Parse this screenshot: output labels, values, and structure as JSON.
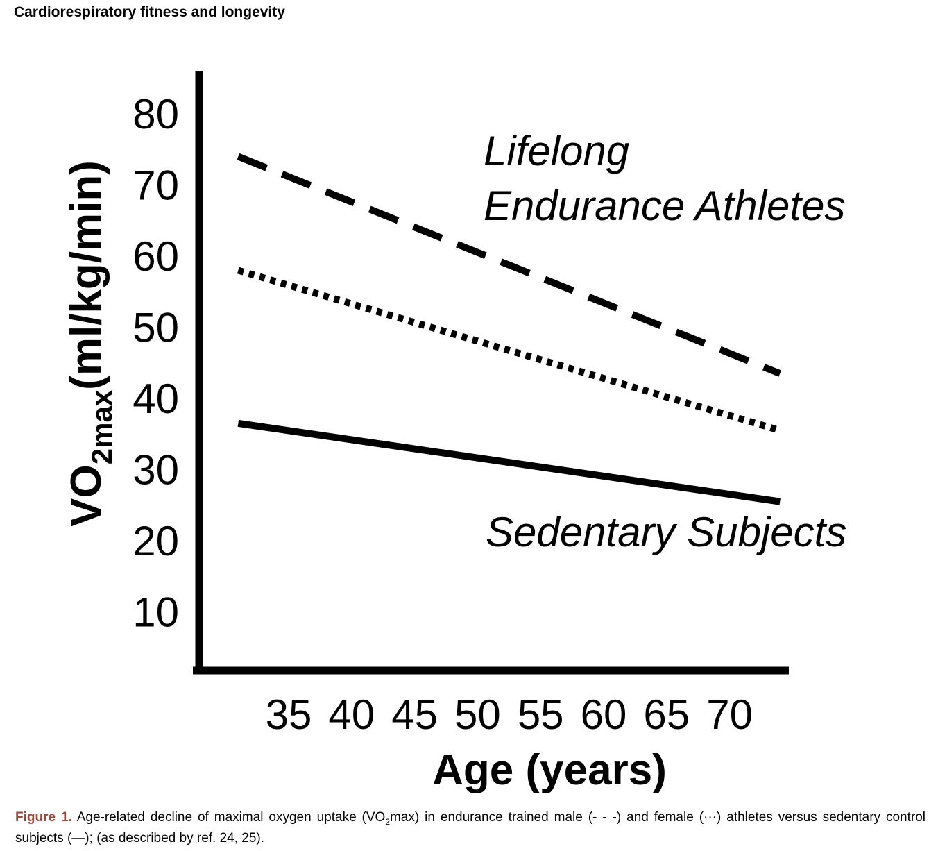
{
  "header": {
    "title": "Cardiorespiratory fitness and longevity"
  },
  "chart_data": {
    "type": "line",
    "title": "",
    "xlabel": "Age (years)",
    "ylabel": {
      "main": "VO",
      "sub": "2max",
      "units": "(ml/kg/min)"
    },
    "x_ticks": [
      "35",
      "40",
      "45",
      "50",
      "55",
      "60",
      "65",
      "70"
    ],
    "y_ticks": [
      "10",
      "20",
      "30",
      "40",
      "50",
      "60",
      "70",
      "80"
    ],
    "xlim": [
      30,
      75
    ],
    "ylim": [
      0,
      85
    ],
    "grid": false,
    "series": [
      {
        "style": "dashed",
        "x": [
          31,
          74
        ],
        "values": [
          74,
          43.5
        ]
      },
      {
        "style": "dotted",
        "x": [
          31,
          74
        ],
        "values": [
          58,
          35.5
        ]
      },
      {
        "style": "solid",
        "x": [
          31,
          74
        ],
        "values": [
          36.5,
          25.5
        ]
      }
    ],
    "annotations": {
      "athletes_line1": "Lifelong",
      "athletes_line2": "Endurance Athletes",
      "sedentary": "Sedentary Subjects"
    }
  },
  "caption": {
    "label": "Figure 1.",
    "text_before_sub": " Age-related decline of maximal oxygen uptake (VO",
    "sub": "2",
    "text_after_sub": "max) in endurance trained male (- - -) and female (···) athletes versus sedentary control subjects (—); (as described by ref. 24, 25)."
  }
}
